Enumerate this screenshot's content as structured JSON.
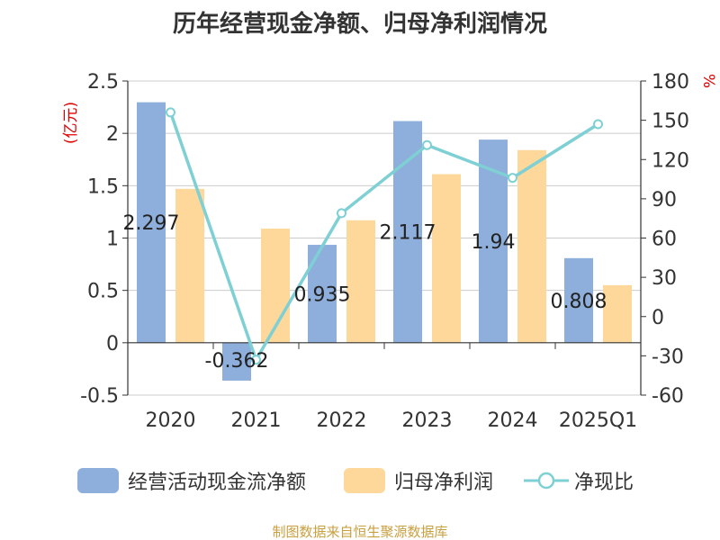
{
  "title": "历年经营现金净额、归母净利润情况",
  "source": "制图数据来自恒生聚源数据库",
  "legend": {
    "bar1": "经营活动现金流净额",
    "bar2": "归母净利润",
    "line": "净现比"
  },
  "colors": {
    "bar1": "#8eaedb",
    "bar2": "#fdd89a",
    "line": "#7fd0d4",
    "unit": "#e00000"
  },
  "chart_data": {
    "type": "bar",
    "categories": [
      "2020",
      "2021",
      "2022",
      "2023",
      "2024",
      "2025Q1"
    ],
    "series": [
      {
        "name": "经营活动现金流净额",
        "values": [
          2.297,
          -0.362,
          0.935,
          2.117,
          1.94,
          0.808
        ],
        "axis": "left",
        "labels": [
          "2.297",
          "-0.362",
          "0.935",
          "2.117",
          "1.94",
          "0.808"
        ]
      },
      {
        "name": "归母净利润",
        "values": [
          1.47,
          1.09,
          1.17,
          1.61,
          1.84,
          0.55
        ],
        "axis": "left"
      },
      {
        "name": "净现比",
        "type": "line",
        "values": [
          156,
          -33,
          79,
          131,
          106,
          147
        ],
        "axis": "right"
      }
    ],
    "left_axis": {
      "unit": "(亿元)",
      "ylim": [
        -0.5,
        2.5
      ],
      "ticks": [
        "-0.5",
        "0",
        "0.5",
        "1",
        "1.5",
        "2",
        "2.5"
      ]
    },
    "right_axis": {
      "unit": "%",
      "ylim": [
        -60,
        180
      ],
      "ticks": [
        "-60",
        "-30",
        "0",
        "30",
        "60",
        "90",
        "120",
        "150",
        "180"
      ]
    },
    "grid": true
  }
}
